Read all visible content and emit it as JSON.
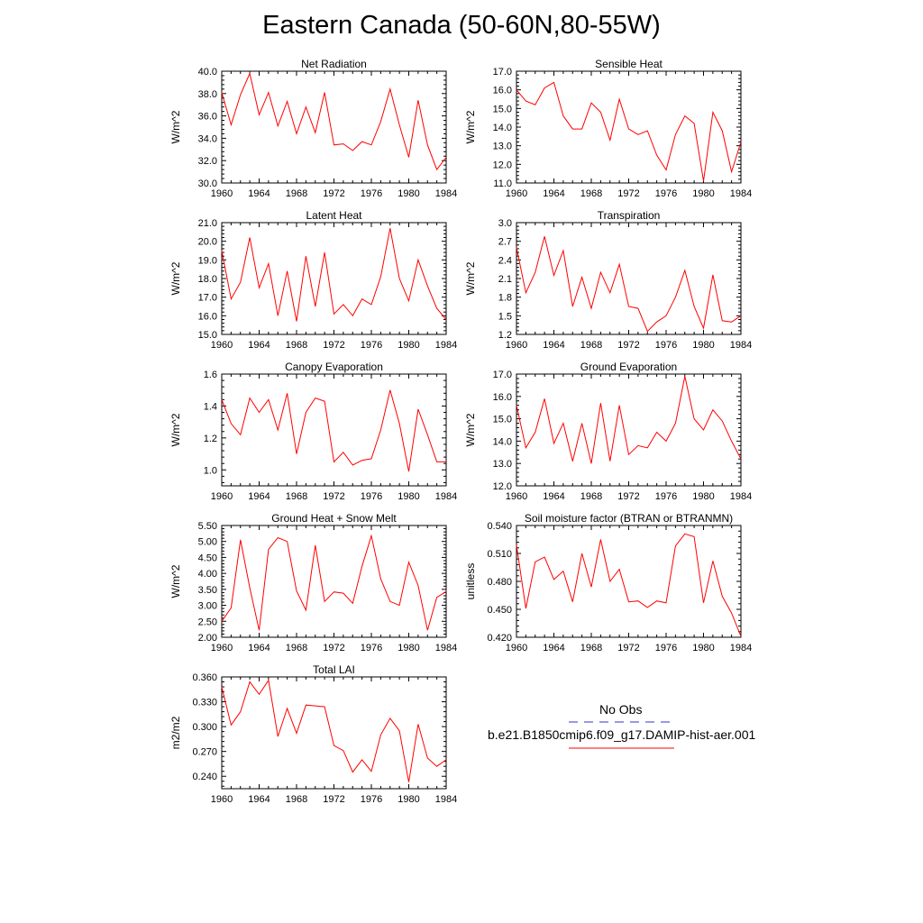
{
  "figure_title": "Eastern Canada (50-60N,80-55W)",
  "legend": {
    "entries": [
      {
        "label": "No Obs",
        "color": "#3333cc",
        "dash": true
      },
      {
        "label": "b.e21.B1850cmip6.f09_g17.DAMIP-hist-aer.001",
        "color": "#ff0000",
        "dash": false
      }
    ]
  },
  "chart_data": [
    {
      "type": "line",
      "title": "Net Radiation",
      "ylabel": "W/m^2",
      "xlim": [
        1960,
        1984
      ],
      "ylim": [
        30,
        40
      ],
      "yticks": [
        "30.0",
        "32.0",
        "34.0",
        "36.0",
        "38.0",
        "40.0"
      ],
      "xticks": [
        "1960",
        "1964",
        "1968",
        "1972",
        "1976",
        "1980",
        "1984"
      ],
      "x": [
        1960,
        1961,
        1962,
        1963,
        1964,
        1965,
        1966,
        1967,
        1968,
        1969,
        1970,
        1971,
        1972,
        1973,
        1974,
        1975,
        1976,
        1977,
        1978,
        1979,
        1980,
        1981,
        1982,
        1983,
        1984
      ],
      "series": [
        {
          "color": "#ff0000",
          "values": [
            38.1,
            35.2,
            37.9,
            39.8,
            36.1,
            38.1,
            35.1,
            37.3,
            34.4,
            36.8,
            34.5,
            38.1,
            33.4,
            33.5,
            32.9,
            33.7,
            33.4,
            35.5,
            38.4,
            35.2,
            32.3,
            37.4,
            33.4,
            31.2,
            32.3
          ]
        }
      ]
    },
    {
      "type": "line",
      "title": "Sensible Heat",
      "ylabel": "W/m^2",
      "xlim": [
        1960,
        1984
      ],
      "ylim": [
        11,
        17
      ],
      "yticks": [
        "11.0",
        "12.0",
        "13.0",
        "14.0",
        "15.0",
        "16.0",
        "17.0"
      ],
      "xticks": [
        "1960",
        "1964",
        "1968",
        "1972",
        "1976",
        "1980",
        "1984"
      ],
      "x": [
        1960,
        1961,
        1962,
        1963,
        1964,
        1965,
        1966,
        1967,
        1968,
        1969,
        1970,
        1971,
        1972,
        1973,
        1974,
        1975,
        1976,
        1977,
        1978,
        1979,
        1980,
        1981,
        1982,
        1983,
        1984
      ],
      "series": [
        {
          "color": "#ff0000",
          "values": [
            16.0,
            15.4,
            15.2,
            16.1,
            16.4,
            14.6,
            13.9,
            13.9,
            15.3,
            14.8,
            13.3,
            15.5,
            13.9,
            13.6,
            13.8,
            12.5,
            11.7,
            13.6,
            14.6,
            14.2,
            11.1,
            14.8,
            13.8,
            11.6,
            13.2
          ]
        }
      ]
    },
    {
      "type": "line",
      "title": "Latent Heat",
      "ylabel": "W/m^2",
      "xlim": [
        1960,
        1984
      ],
      "ylim": [
        15,
        21
      ],
      "yticks": [
        "15.0",
        "16.0",
        "17.0",
        "18.0",
        "19.0",
        "20.0",
        "21.0"
      ],
      "xticks": [
        "1960",
        "1964",
        "1968",
        "1972",
        "1976",
        "1980",
        "1984"
      ],
      "x": [
        1960,
        1961,
        1962,
        1963,
        1964,
        1965,
        1966,
        1967,
        1968,
        1969,
        1970,
        1971,
        1972,
        1973,
        1974,
        1975,
        1976,
        1977,
        1978,
        1979,
        1980,
        1981,
        1982,
        1983,
        1984
      ],
      "series": [
        {
          "color": "#ff0000",
          "values": [
            19.5,
            16.9,
            17.8,
            20.2,
            17.5,
            18.8,
            16.0,
            18.4,
            15.7,
            19.2,
            16.5,
            19.4,
            16.1,
            16.6,
            16.0,
            16.9,
            16.6,
            18.1,
            20.7,
            18.0,
            16.8,
            19.0,
            17.6,
            16.4,
            15.8
          ]
        }
      ]
    },
    {
      "type": "line",
      "title": "Transpiration",
      "ylabel": "W/m^2",
      "xlim": [
        1960,
        1984
      ],
      "ylim": [
        1.2,
        3.0
      ],
      "yticks": [
        "1.2",
        "1.5",
        "1.8",
        "2.1",
        "2.4",
        "2.7",
        "3.0"
      ],
      "xticks": [
        "1960",
        "1964",
        "1968",
        "1972",
        "1976",
        "1980",
        "1984"
      ],
      "x": [
        1960,
        1961,
        1962,
        1963,
        1964,
        1965,
        1966,
        1967,
        1968,
        1969,
        1970,
        1971,
        1972,
        1973,
        1974,
        1975,
        1976,
        1977,
        1978,
        1979,
        1980,
        1981,
        1982,
        1983,
        1984
      ],
      "series": [
        {
          "color": "#ff0000",
          "values": [
            2.6,
            1.87,
            2.2,
            2.78,
            2.15,
            2.55,
            1.65,
            2.12,
            1.62,
            2.2,
            1.87,
            2.33,
            1.65,
            1.62,
            1.25,
            1.4,
            1.5,
            1.8,
            2.23,
            1.65,
            1.3,
            2.16,
            1.42,
            1.4,
            1.5
          ]
        }
      ]
    },
    {
      "type": "line",
      "title": "Canopy Evaporation",
      "ylabel": "W/m^2",
      "xlim": [
        1960,
        1984
      ],
      "ylim": [
        0.9,
        1.6
      ],
      "yticks": [
        "1.0",
        "1.2",
        "1.4",
        "1.6"
      ],
      "xticks": [
        "1960",
        "1964",
        "1968",
        "1972",
        "1976",
        "1980",
        "1984"
      ],
      "x": [
        1960,
        1961,
        1962,
        1963,
        1964,
        1965,
        1966,
        1967,
        1968,
        1969,
        1970,
        1971,
        1972,
        1973,
        1974,
        1975,
        1976,
        1977,
        1978,
        1979,
        1980,
        1981,
        1982,
        1983,
        1984
      ],
      "series": [
        {
          "color": "#ff0000",
          "values": [
            1.44,
            1.29,
            1.22,
            1.45,
            1.36,
            1.44,
            1.25,
            1.48,
            1.1,
            1.36,
            1.45,
            1.43,
            1.05,
            1.11,
            1.03,
            1.06,
            1.07,
            1.25,
            1.5,
            1.29,
            0.99,
            1.38,
            1.22,
            1.05,
            1.05
          ]
        }
      ]
    },
    {
      "type": "line",
      "title": "Ground Evaporation",
      "ylabel": "W/m^2",
      "xlim": [
        1960,
        1984
      ],
      "ylim": [
        12,
        17
      ],
      "yticks": [
        "12.0",
        "13.0",
        "14.0",
        "15.0",
        "16.0",
        "17.0"
      ],
      "xticks": [
        "1960",
        "1964",
        "1968",
        "1972",
        "1976",
        "1980",
        "1984"
      ],
      "x": [
        1960,
        1961,
        1962,
        1963,
        1964,
        1965,
        1966,
        1967,
        1968,
        1969,
        1970,
        1971,
        1972,
        1973,
        1974,
        1975,
        1976,
        1977,
        1978,
        1979,
        1980,
        1981,
        1982,
        1983,
        1984
      ],
      "series": [
        {
          "color": "#ff0000",
          "values": [
            15.6,
            13.7,
            14.4,
            15.9,
            13.9,
            14.8,
            13.1,
            14.8,
            13.0,
            15.7,
            13.1,
            15.6,
            13.4,
            13.8,
            13.7,
            14.4,
            14.0,
            14.8,
            16.9,
            15.0,
            14.5,
            15.4,
            14.9,
            14.0,
            13.2
          ]
        }
      ]
    },
    {
      "type": "line",
      "title": "Ground Heat + Snow Melt",
      "ylabel": "W/m^2",
      "xlim": [
        1960,
        1984
      ],
      "ylim": [
        2.0,
        5.5
      ],
      "yticks": [
        "2.00",
        "2.50",
        "3.00",
        "3.50",
        "4.00",
        "4.50",
        "5.00",
        "5.50"
      ],
      "xticks": [
        "1960",
        "1964",
        "1968",
        "1972",
        "1976",
        "1980",
        "1984"
      ],
      "x": [
        1960,
        1961,
        1962,
        1963,
        1964,
        1965,
        1966,
        1967,
        1968,
        1969,
        1970,
        1971,
        1972,
        1973,
        1974,
        1975,
        1976,
        1977,
        1978,
        1979,
        1980,
        1981,
        1982,
        1983,
        1984
      ],
      "series": [
        {
          "color": "#ff0000",
          "values": [
            2.5,
            2.92,
            5.05,
            3.55,
            2.22,
            4.75,
            5.12,
            5.0,
            3.45,
            2.85,
            4.88,
            3.12,
            3.42,
            3.38,
            3.06,
            4.22,
            5.18,
            3.83,
            3.12,
            3.0,
            4.35,
            3.62,
            2.22,
            3.25,
            3.43
          ]
        }
      ]
    },
    {
      "type": "line",
      "title": "Soil moisture factor (BTRAN or BTRANMN)",
      "ylabel": "unitless",
      "xlim": [
        1960,
        1984
      ],
      "ylim": [
        0.42,
        0.54
      ],
      "yticks": [
        "0.420",
        "0.450",
        "0.480",
        "0.510",
        "0.540"
      ],
      "xticks": [
        "1960",
        "1964",
        "1968",
        "1972",
        "1976",
        "1980",
        "1984"
      ],
      "x": [
        1960,
        1961,
        1962,
        1963,
        1964,
        1965,
        1966,
        1967,
        1968,
        1969,
        1970,
        1971,
        1972,
        1973,
        1974,
        1975,
        1976,
        1977,
        1978,
        1979,
        1980,
        1981,
        1982,
        1983,
        1984
      ],
      "series": [
        {
          "color": "#ff0000",
          "values": [
            0.519,
            0.451,
            0.501,
            0.506,
            0.482,
            0.491,
            0.458,
            0.51,
            0.474,
            0.525,
            0.48,
            0.493,
            0.458,
            0.459,
            0.452,
            0.459,
            0.457,
            0.518,
            0.531,
            0.528,
            0.457,
            0.502,
            0.464,
            0.446,
            0.421
          ]
        }
      ]
    },
    {
      "type": "line",
      "title": "Total LAI",
      "ylabel": "m2/m2",
      "xlim": [
        1960,
        1984
      ],
      "ylim": [
        0.225,
        0.36
      ],
      "yticks": [
        "0.240",
        "0.270",
        "0.300",
        "0.330",
        "0.360"
      ],
      "xticks": [
        "1960",
        "1964",
        "1968",
        "1972",
        "1976",
        "1980",
        "1984"
      ],
      "x": [
        1960,
        1961,
        1962,
        1963,
        1964,
        1965,
        1966,
        1967,
        1968,
        1969,
        1970,
        1971,
        1972,
        1973,
        1974,
        1975,
        1976,
        1977,
        1978,
        1979,
        1980,
        1981,
        1982,
        1983,
        1984
      ],
      "series": [
        {
          "color": "#ff0000",
          "values": [
            0.348,
            0.302,
            0.318,
            0.354,
            0.339,
            0.356,
            0.288,
            0.322,
            0.292,
            0.326,
            0.325,
            0.324,
            0.277,
            0.271,
            0.245,
            0.26,
            0.246,
            0.29,
            0.31,
            0.295,
            0.233,
            0.303,
            0.262,
            0.252,
            0.26
          ]
        }
      ]
    }
  ]
}
